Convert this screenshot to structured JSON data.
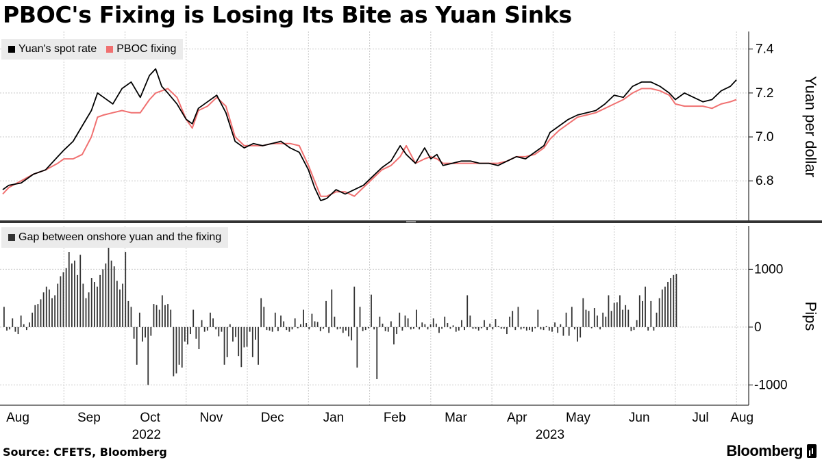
{
  "title": "PBOC's Fixing is Losing Its Bite as Yuan Sinks",
  "source": "Source: CFETS, Bloomberg",
  "brand": "Bloomberg",
  "colors": {
    "spot": "#000000",
    "fixing": "#f07070",
    "gap_bars": "#333333",
    "grid": "#c8c8c8",
    "legend_bg": "#ebebeb"
  },
  "x_axis": {
    "months": [
      "Aug",
      "Sep",
      "Oct",
      "Nov",
      "Dec",
      "Jan",
      "Feb",
      "Mar",
      "Apr",
      "May",
      "Jun",
      "Jul",
      "Aug"
    ],
    "years": [
      "2022",
      "2023"
    ]
  },
  "chart_data": [
    {
      "type": "line",
      "ylabel": "Yuan per dollar",
      "ylim": [
        6.62,
        7.48
      ],
      "yticks": [
        6.8,
        7.0,
        7.2,
        7.4
      ],
      "ytick_labels": [
        "6.8",
        "7.0",
        "7.2",
        "7.4"
      ],
      "grid": true,
      "legend_placement": "top-left",
      "x_unit": "months since start of Aug 2022",
      "series": [
        {
          "name": "Yuan's spot rate",
          "points": [
            [
              0.0,
              6.76
            ],
            [
              0.1,
              6.78
            ],
            [
              0.3,
              6.79
            ],
            [
              0.5,
              6.83
            ],
            [
              0.7,
              6.85
            ],
            [
              0.9,
              6.91
            ],
            [
              1.0,
              6.94
            ],
            [
              1.15,
              6.98
            ],
            [
              1.3,
              7.05
            ],
            [
              1.45,
              7.12
            ],
            [
              1.55,
              7.2
            ],
            [
              1.65,
              7.18
            ],
            [
              1.8,
              7.15
            ],
            [
              1.95,
              7.22
            ],
            [
              2.1,
              7.25
            ],
            [
              2.25,
              7.18
            ],
            [
              2.4,
              7.28
            ],
            [
              2.5,
              7.31
            ],
            [
              2.6,
              7.23
            ],
            [
              2.7,
              7.2
            ],
            [
              2.85,
              7.15
            ],
            [
              3.0,
              7.08
            ],
            [
              3.1,
              7.06
            ],
            [
              3.2,
              7.13
            ],
            [
              3.35,
              7.16
            ],
            [
              3.5,
              7.19
            ],
            [
              3.65,
              7.11
            ],
            [
              3.8,
              6.98
            ],
            [
              3.95,
              6.95
            ],
            [
              4.1,
              6.97
            ],
            [
              4.25,
              6.96
            ],
            [
              4.4,
              6.97
            ],
            [
              4.55,
              6.98
            ],
            [
              4.7,
              6.95
            ],
            [
              4.85,
              6.93
            ],
            [
              5.0,
              6.85
            ],
            [
              5.1,
              6.77
            ],
            [
              5.2,
              6.71
            ],
            [
              5.3,
              6.72
            ],
            [
              5.45,
              6.76
            ],
            [
              5.6,
              6.74
            ],
            [
              5.75,
              6.76
            ],
            [
              5.9,
              6.78
            ],
            [
              6.05,
              6.82
            ],
            [
              6.2,
              6.86
            ],
            [
              6.35,
              6.89
            ],
            [
              6.5,
              6.96
            ],
            [
              6.6,
              6.92
            ],
            [
              6.75,
              6.88
            ],
            [
              6.9,
              6.95
            ],
            [
              7.0,
              6.9
            ],
            [
              7.1,
              6.92
            ],
            [
              7.2,
              6.87
            ],
            [
              7.35,
              6.88
            ],
            [
              7.5,
              6.89
            ],
            [
              7.65,
              6.89
            ],
            [
              7.8,
              6.88
            ],
            [
              7.95,
              6.88
            ],
            [
              8.1,
              6.87
            ],
            [
              8.25,
              6.89
            ],
            [
              8.4,
              6.91
            ],
            [
              8.55,
              6.9
            ],
            [
              8.7,
              6.93
            ],
            [
              8.85,
              6.96
            ],
            [
              8.95,
              7.02
            ],
            [
              9.1,
              7.05
            ],
            [
              9.25,
              7.08
            ],
            [
              9.4,
              7.1
            ],
            [
              9.55,
              7.11
            ],
            [
              9.7,
              7.12
            ],
            [
              9.85,
              7.15
            ],
            [
              10.0,
              7.19
            ],
            [
              10.15,
              7.18
            ],
            [
              10.3,
              7.23
            ],
            [
              10.45,
              7.25
            ],
            [
              10.6,
              7.25
            ],
            [
              10.75,
              7.23
            ],
            [
              10.9,
              7.2
            ],
            [
              11.0,
              7.17
            ],
            [
              11.15,
              7.2
            ],
            [
              11.3,
              7.18
            ],
            [
              11.45,
              7.16
            ],
            [
              11.6,
              7.17
            ],
            [
              11.75,
              7.21
            ],
            [
              11.9,
              7.23
            ],
            [
              12.0,
              7.26
            ]
          ]
        },
        {
          "name": "PBOC fixing",
          "points": [
            [
              0.0,
              6.74
            ],
            [
              0.1,
              6.77
            ],
            [
              0.3,
              6.8
            ],
            [
              0.5,
              6.83
            ],
            [
              0.7,
              6.85
            ],
            [
              0.9,
              6.88
            ],
            [
              1.0,
              6.9
            ],
            [
              1.15,
              6.9
            ],
            [
              1.3,
              6.92
            ],
            [
              1.45,
              7.0
            ],
            [
              1.55,
              7.09
            ],
            [
              1.65,
              7.1
            ],
            [
              1.8,
              7.11
            ],
            [
              1.95,
              7.12
            ],
            [
              2.1,
              7.11
            ],
            [
              2.25,
              7.11
            ],
            [
              2.4,
              7.17
            ],
            [
              2.5,
              7.2
            ],
            [
              2.6,
              7.21
            ],
            [
              2.7,
              7.22
            ],
            [
              2.85,
              7.18
            ],
            [
              3.0,
              7.08
            ],
            [
              3.1,
              7.04
            ],
            [
              3.2,
              7.12
            ],
            [
              3.35,
              7.14
            ],
            [
              3.5,
              7.18
            ],
            [
              3.65,
              7.14
            ],
            [
              3.8,
              7.0
            ],
            [
              3.95,
              6.96
            ],
            [
              4.1,
              6.96
            ],
            [
              4.25,
              6.96
            ],
            [
              4.4,
              6.97
            ],
            [
              4.55,
              6.97
            ],
            [
              4.7,
              6.97
            ],
            [
              4.85,
              6.96
            ],
            [
              5.0,
              6.87
            ],
            [
              5.1,
              6.8
            ],
            [
              5.2,
              6.73
            ],
            [
              5.3,
              6.73
            ],
            [
              5.45,
              6.75
            ],
            [
              5.6,
              6.75
            ],
            [
              5.75,
              6.73
            ],
            [
              5.9,
              6.77
            ],
            [
              6.05,
              6.81
            ],
            [
              6.2,
              6.85
            ],
            [
              6.35,
              6.87
            ],
            [
              6.5,
              6.91
            ],
            [
              6.6,
              6.96
            ],
            [
              6.75,
              6.88
            ],
            [
              6.9,
              6.9
            ],
            [
              7.0,
              6.91
            ],
            [
              7.1,
              6.9
            ],
            [
              7.2,
              6.88
            ],
            [
              7.35,
              6.88
            ],
            [
              7.5,
              6.88
            ],
            [
              7.65,
              6.88
            ],
            [
              7.8,
              6.88
            ],
            [
              7.95,
              6.88
            ],
            [
              8.1,
              6.88
            ],
            [
              8.25,
              6.89
            ],
            [
              8.4,
              6.91
            ],
            [
              8.55,
              6.91
            ],
            [
              8.7,
              6.92
            ],
            [
              8.85,
              6.95
            ],
            [
              8.95,
              6.99
            ],
            [
              9.1,
              7.03
            ],
            [
              9.25,
              7.06
            ],
            [
              9.4,
              7.09
            ],
            [
              9.55,
              7.1
            ],
            [
              9.7,
              7.11
            ],
            [
              9.85,
              7.13
            ],
            [
              10.0,
              7.15
            ],
            [
              10.15,
              7.17
            ],
            [
              10.3,
              7.2
            ],
            [
              10.45,
              7.22
            ],
            [
              10.6,
              7.22
            ],
            [
              10.75,
              7.21
            ],
            [
              10.9,
              7.19
            ],
            [
              11.0,
              7.15
            ],
            [
              11.15,
              7.14
            ],
            [
              11.3,
              7.14
            ],
            [
              11.45,
              7.14
            ],
            [
              11.6,
              7.13
            ],
            [
              11.75,
              7.15
            ],
            [
              11.9,
              7.16
            ],
            [
              12.0,
              7.17
            ]
          ]
        }
      ]
    },
    {
      "type": "bar",
      "ylabel": "Pips",
      "ylim": [
        -1350,
        1750
      ],
      "yticks": [
        -1000,
        0,
        1000
      ],
      "ytick_labels": [
        "-1000",
        "0",
        "1000"
      ],
      "grid": true,
      "legend_placement": "top-left",
      "x_unit": "months since start of Aug 2022",
      "series": [
        {
          "name": "Gap between onshore yuan and the fixing",
          "x_start": 0.0,
          "x_step": 0.0462,
          "values": [
            350,
            -60,
            -40,
            150,
            -80,
            -120,
            200,
            50,
            -50,
            80,
            250,
            380,
            400,
            480,
            600,
            700,
            650,
            500,
            550,
            750,
            880,
            950,
            1020,
            1300,
            1100,
            1150,
            900,
            1250,
            750,
            500,
            600,
            850,
            780,
            700,
            900,
            1000,
            1100,
            1380,
            1150,
            1050,
            800,
            650,
            750,
            1300,
            450,
            350,
            -200,
            -650,
            250,
            -250,
            -180,
            -1000,
            -150,
            400,
            380,
            300,
            550,
            380,
            400,
            300,
            -850,
            -800,
            -650,
            -700,
            -250,
            -300,
            -120,
            300,
            -200,
            -380,
            120,
            -80,
            -60,
            250,
            150,
            -40,
            -160,
            -80,
            -650,
            -520,
            50,
            -250,
            -170,
            -500,
            -690,
            -350,
            -340,
            -80,
            -520,
            -220,
            -650,
            500,
            350,
            -50,
            -60,
            -80,
            250,
            -70,
            200,
            100,
            -50,
            -80,
            -40,
            150,
            -20,
            50,
            300,
            70,
            -40,
            230,
            100,
            90,
            -70,
            -30,
            450,
            -100,
            650,
            180,
            -40,
            -30,
            -100,
            -60,
            -160,
            -230,
            700,
            -700,
            350,
            -70,
            -50,
            -20,
            560,
            -40,
            -900,
            180,
            60,
            -70,
            -80,
            100,
            -300,
            -120,
            250,
            -60,
            200,
            150,
            -40,
            -30,
            300,
            -40,
            80,
            50,
            -40,
            50,
            150,
            60,
            -100,
            -30,
            180,
            70,
            -30,
            30,
            -80,
            -60,
            120,
            -50,
            550,
            200,
            -30,
            -30,
            -60,
            -20,
            120,
            -50,
            60,
            -40,
            140,
            20,
            -30,
            -30,
            -120,
            180,
            280,
            -50,
            350,
            -40,
            -20,
            -60,
            -50,
            -80,
            -20,
            300,
            -40,
            -50,
            20,
            -60,
            -80,
            80,
            -100,
            50,
            -150,
            250,
            -150,
            350,
            -40,
            -250,
            -180,
            500,
            300,
            280,
            -20,
            330,
            200,
            -40,
            250,
            180,
            550,
            280,
            420,
            430,
            550,
            300,
            380,
            300,
            -70,
            -50,
            120,
            550,
            450,
            700,
            -60,
            450,
            -60,
            250,
            500,
            650,
            700,
            780,
            850,
            900,
            920
          ]
        }
      ]
    }
  ]
}
